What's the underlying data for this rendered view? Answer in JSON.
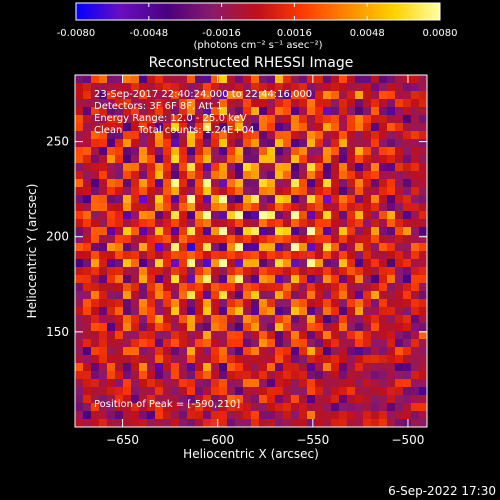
{
  "chart_data": {
    "type": "heatmap",
    "title": "Reconstructed RHESSI Image",
    "xlabel": "Heliocentric X (arcsec)",
    "ylabel": "Heliocentric Y (arcsec)",
    "xlim": [
      -675,
      -490
    ],
    "ylim": [
      100,
      285
    ],
    "x_ticks": [
      -650,
      -600,
      -550,
      -500
    ],
    "y_ticks": [
      150,
      200,
      250
    ],
    "colorbar": {
      "min": -0.008,
      "max": 0.008,
      "ticks": [
        "-0.0080",
        "-0.0048",
        "-0.0016",
        "0.0016",
        "0.0048",
        "0.0080"
      ],
      "unit_label": "(photons cm⁻² s⁻¹ asec⁻²)",
      "colors": [
        "#0000ff",
        "#6a0fc0",
        "#4a0080",
        "#8b1a6b",
        "#c0101a",
        "#ff3c00",
        "#ff8a00",
        "#ffd200",
        "#ffffa0"
      ]
    },
    "peak": {
      "x": -590,
      "y": 210
    },
    "annotations": [
      "23-Sep-2017 22:40:24.000 to 22:44:16.000",
      "Detectors: 3F 6F 8F, Att 1",
      "Energy Range: 12.0 - 25.0 keV",
      "Clean     Total counts: 1.24E+04",
      "Position of Peak = [-590,210]"
    ]
  },
  "footer": {
    "timestamp": "6-Sep-2022 17:30"
  }
}
